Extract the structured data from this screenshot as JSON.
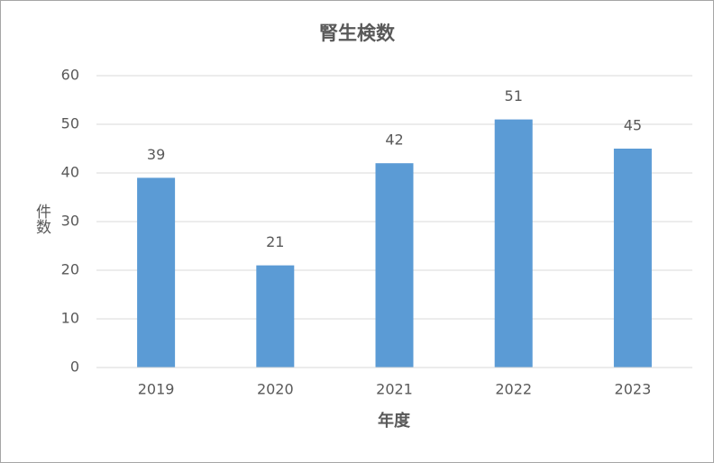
{
  "chart_data": {
    "type": "bar",
    "title": "腎生検数",
    "x_label": "年度",
    "y_label": "件数",
    "categories": [
      "2019",
      "2020",
      "2021",
      "2022",
      "2023"
    ],
    "values": [
      39,
      21,
      42,
      51,
      45
    ],
    "color": "#5b9bd5",
    "ylim": [
      0,
      60
    ],
    "yticks": [
      0,
      10,
      20,
      30,
      40,
      50,
      60
    ],
    "grid": true,
    "data_labels": true
  }
}
